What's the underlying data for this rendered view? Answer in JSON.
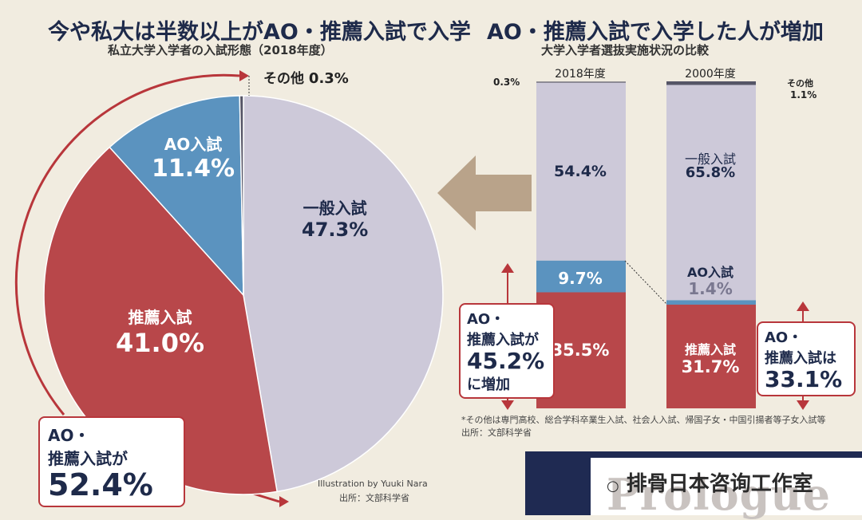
{
  "left": {
    "title": "今や私大は半数以上がAO・推薦入試で入学",
    "subtitle": "私立大学入学者の入試形態（2018年度）",
    "credit": "Illustration by Yuuki Nara",
    "source": "出所：文部科学省",
    "callout": {
      "line1": "AO・",
      "line2": "推薦入試が",
      "line3": "52.4%"
    }
  },
  "right": {
    "title": "AO・推薦入試で入学した人が増加",
    "subtitle": "大学入学者選抜実施状況の比較",
    "footnote": "*その他は専門高校、総合学科卒業生入試、社会人入試、帰国子女・中国引揚者等子女入試等",
    "source": "出所：文部科学省",
    "callout_left": {
      "line1": "AO・",
      "line2": "推薦入試が",
      "line3": "45.2%",
      "line4": "に増加"
    },
    "callout_right": {
      "line1": "AO・",
      "line2": "推薦入試は",
      "line3": "33.1%"
    }
  },
  "watermark": "排骨日本咨询工作室",
  "brand": "Prologue",
  "colors": {
    "general": "#cdc9d9",
    "ao": "#5b93bf",
    "suisen": "#b8474a",
    "other": "#555566",
    "accent": "#b8363b"
  },
  "chart_data": [
    {
      "type": "pie",
      "title": "私立大学入学者の入試形態（2018年度）",
      "slices": [
        {
          "label": "一般入試",
          "value": 47.3,
          "text": "47.3%"
        },
        {
          "label": "推薦入試",
          "value": 41.0,
          "text": "41.0%"
        },
        {
          "label": "AO入試",
          "value": 11.4,
          "text": "11.4%"
        },
        {
          "label": "その他",
          "value": 0.3,
          "text": "0.3%"
        }
      ]
    },
    {
      "type": "bar",
      "stacked": true,
      "title": "大学入学者選抜実施状況の比較",
      "categories": [
        "2018年度",
        "2000年度"
      ],
      "series": [
        {
          "name": "推薦入試",
          "values": [
            35.5,
            31.7
          ],
          "labels": [
            "35.5%",
            "31.7%"
          ]
        },
        {
          "name": "AO入試",
          "values": [
            9.7,
            1.4
          ],
          "labels": [
            "9.7%",
            "1.4%"
          ]
        },
        {
          "name": "一般入試",
          "values": [
            54.4,
            65.8
          ],
          "labels": [
            "54.4%",
            "65.8%"
          ]
        },
        {
          "name": "その他",
          "values": [
            0.3,
            1.1
          ],
          "labels": [
            "0.3%",
            "1.1%"
          ]
        }
      ],
      "ylim": [
        0,
        100
      ]
    }
  ]
}
